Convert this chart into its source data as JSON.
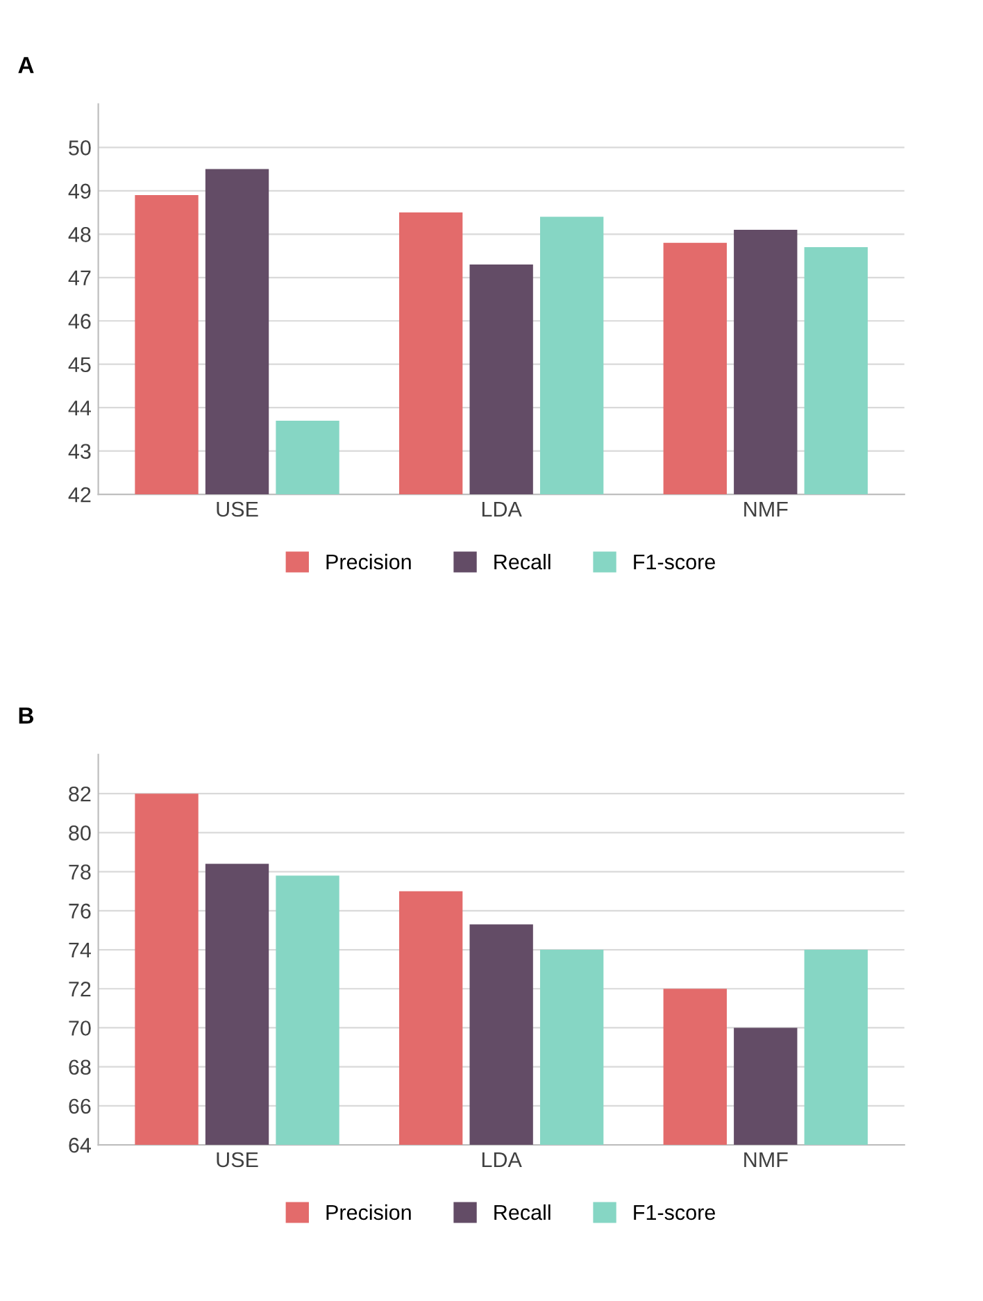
{
  "chart_data": [
    {
      "type": "bar",
      "title": "A",
      "categories": [
        "USE",
        "LDA",
        "NMF"
      ],
      "series": [
        {
          "name": "Precision",
          "color": "#e36b6b",
          "values": [
            48.9,
            48.5,
            47.8
          ]
        },
        {
          "name": "Recall",
          "color": "#634c66",
          "values": [
            49.5,
            47.3,
            48.1
          ]
        },
        {
          "name": "F1-score",
          "color": "#86d6c4",
          "values": [
            43.7,
            48.4,
            47.7
          ]
        }
      ],
      "ylim": [
        42,
        51
      ],
      "yticks": [
        42,
        43,
        44,
        45,
        46,
        47,
        48,
        49,
        50
      ],
      "grid": "y",
      "legend": "bottom"
    },
    {
      "type": "bar",
      "title": "B",
      "categories": [
        "USE",
        "LDA",
        "NMF"
      ],
      "series": [
        {
          "name": "Precision",
          "color": "#e36b6b",
          "values": [
            82,
            77,
            72
          ]
        },
        {
          "name": "Recall",
          "color": "#634c66",
          "values": [
            78.4,
            75.3,
            70
          ]
        },
        {
          "name": "F1-score",
          "color": "#86d6c4",
          "values": [
            77.8,
            74,
            74
          ]
        }
      ],
      "ylim": [
        64,
        84
      ],
      "yticks": [
        64,
        66,
        68,
        70,
        72,
        74,
        76,
        78,
        80,
        82
      ],
      "grid": "y",
      "legend": "bottom"
    }
  ]
}
